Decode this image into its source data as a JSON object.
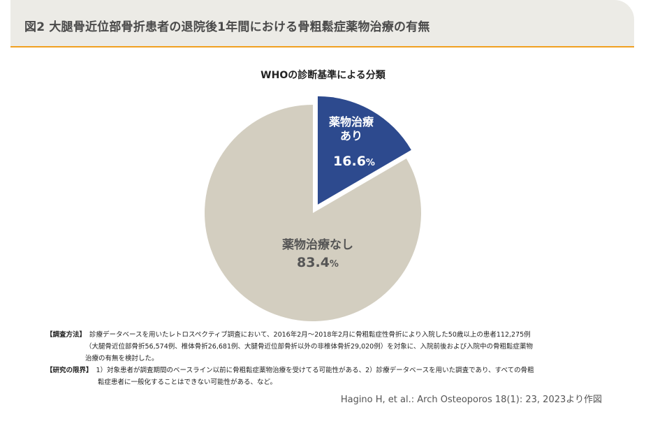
{
  "header": {
    "title": "図2 大腿骨近位部骨折患者の退院後1年間における骨粗鬆症薬物治療の有無"
  },
  "colors": {
    "accent_line": "#f0a020",
    "header_bg": "#ecebe6",
    "slice_treated": "#2d4a8e",
    "slice_untreated": "#d3cec0"
  },
  "chart_data": {
    "type": "pie",
    "title": "WHOの診断基準による分類",
    "slices": [
      {
        "label_line1": "薬物治療",
        "label_line2": "あり",
        "value": 16.6,
        "value_text": "16.6",
        "unit": "%",
        "exploded": true
      },
      {
        "label_line1": "薬物治療なし",
        "label_line2": "",
        "value": 83.4,
        "value_text": "83.4",
        "unit": "%",
        "exploded": false
      }
    ]
  },
  "notes": {
    "method_key": "【調査方法】",
    "method_line1": "診療データベースを用いたレトロスペクティブ調査において、2016年2月～2018年2月に骨粗鬆症性骨折により入院した50歳以上の患者112,275例",
    "method_line2": "（大腿骨近位部骨折56,574例、椎体骨折26,681例、大腿骨近位部骨折以外の非椎体骨折29,020例）を対象に、入院前後および入院中の骨粗鬆症薬物",
    "method_line3": "治療の有無を検討した。",
    "limit_key": "【研究の限界】",
    "limit_line1": "1）対象患者が調査期間のベースライン以前に骨粗鬆症薬物治療を受けてる可能性がある、2）診療データベースを用いた調査であり、すべての骨粗",
    "limit_line2": "鬆症患者に一般化することはできない可能性がある、など。"
  },
  "source": "Hagino H, et al.: Arch Osteoporos 18(1): 23, 2023より作図"
}
